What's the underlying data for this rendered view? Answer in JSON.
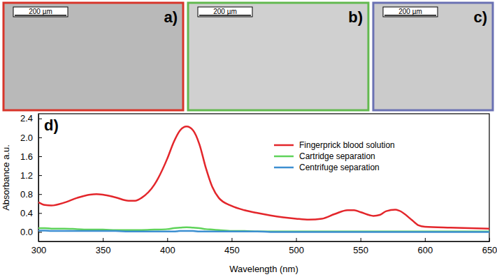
{
  "panels": [
    {
      "label": "a)",
      "scale_bar": "200 µm",
      "color": "#d8352a"
    },
    {
      "label": "b)",
      "scale_bar": "200 µm",
      "color": "#62b94f"
    },
    {
      "label": "c)",
      "scale_bar": "200 µm",
      "color": "#6a71b3"
    }
  ],
  "chart_data": {
    "type": "line",
    "annotations": [
      "d)"
    ],
    "x_label": "Wavelength (nm)",
    "y_label": "Absorbance a.u.",
    "x": [
      300,
      305,
      310,
      320,
      330,
      340,
      345,
      350,
      360,
      370,
      375,
      380,
      390,
      400,
      405,
      410,
      415,
      420,
      425,
      430,
      435,
      440,
      450,
      460,
      470,
      480,
      490,
      500,
      510,
      520,
      530,
      540,
      545,
      550,
      560,
      565,
      570,
      577,
      580,
      590,
      595,
      600,
      620,
      650
    ],
    "series": [
      {
        "name": "Fingerprick blood solution",
        "color": "#e3262b",
        "values": [
          0.63,
          0.57,
          0.56,
          0.62,
          0.72,
          0.79,
          0.8,
          0.79,
          0.73,
          0.66,
          0.66,
          0.72,
          1.0,
          1.55,
          1.9,
          2.15,
          2.23,
          2.15,
          1.85,
          1.35,
          0.95,
          0.72,
          0.55,
          0.46,
          0.4,
          0.35,
          0.31,
          0.28,
          0.26,
          0.28,
          0.38,
          0.46,
          0.46,
          0.42,
          0.34,
          0.36,
          0.44,
          0.47,
          0.45,
          0.25,
          0.14,
          0.11,
          0.09,
          0.07
        ]
      },
      {
        "name": "Cartridge separation",
        "color": "#5fd35a",
        "values": [
          0.08,
          0.08,
          0.07,
          0.07,
          0.06,
          0.05,
          0.05,
          0.05,
          0.04,
          0.04,
          0.04,
          0.04,
          0.05,
          0.06,
          0.08,
          0.09,
          0.1,
          0.09,
          0.08,
          0.06,
          0.05,
          0.04,
          0.02,
          0.02,
          0.01,
          0.01,
          0.01,
          0.01,
          0.01,
          0.01,
          0.01,
          0.01,
          0.01,
          0.01,
          0.01,
          0.01,
          0.01,
          0.01,
          0.01,
          0.01,
          0.01,
          0.01,
          0.01,
          0.01
        ]
      },
      {
        "name": "Centrifuge separation",
        "color": "#3d8fd1",
        "values": [
          0.03,
          0.03,
          0.02,
          0.02,
          0.02,
          0.02,
          0.02,
          0.02,
          0.02,
          0.01,
          0.01,
          0.01,
          0.01,
          0.01,
          0.01,
          0.02,
          0.02,
          0.02,
          0.01,
          0.01,
          0.01,
          0.01,
          0.01,
          0.01,
          0.01,
          0,
          0,
          0,
          0,
          0,
          0,
          0,
          0,
          0,
          0,
          0,
          0,
          0,
          0,
          0,
          0,
          0,
          0,
          0
        ]
      }
    ],
    "xlim": [
      300,
      650
    ],
    "xticks": [
      300,
      350,
      400,
      450,
      500,
      550,
      600,
      650
    ],
    "ylim": [
      -0.2,
      2.5
    ],
    "yticks": [
      {
        "value": 0,
        "label": "0.0"
      },
      {
        "value": 0.4,
        "label": "0.4"
      },
      {
        "value": 0.8,
        "label": "0.8"
      },
      {
        "value": 1.2,
        "label": "1.2"
      },
      {
        "value": 1.6,
        "label": "1.6"
      },
      {
        "value": 2.0,
        "label": "2.0"
      },
      {
        "value": 2.4,
        "label": "2.4"
      }
    ],
    "legend": "upper right",
    "grid": false
  }
}
